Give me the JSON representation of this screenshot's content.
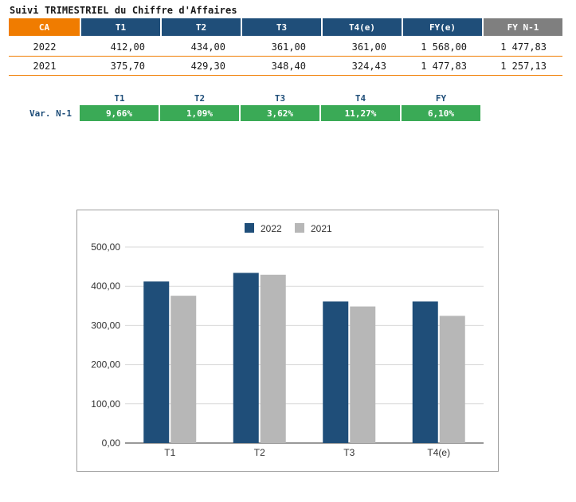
{
  "title": "Suivi TRIMESTRIEL du Chiffre d'Affaires",
  "table": {
    "headers": [
      "CA",
      "T1",
      "T2",
      "T3",
      "T4(e)",
      "FY(e)",
      "FY N-1"
    ],
    "rows": [
      {
        "year": "2022",
        "cells": [
          "412,00",
          "434,00",
          "361,00",
          "361,00",
          "1 568,00",
          "1 477,83"
        ]
      },
      {
        "year": "2021",
        "cells": [
          "375,70",
          "429,30",
          "348,40",
          "324,43",
          "1 477,83",
          "1 257,13"
        ]
      }
    ]
  },
  "variation": {
    "label": "Var. N-1",
    "headers": [
      "T1",
      "T2",
      "T3",
      "T4",
      "FY"
    ],
    "values": [
      "9,66%",
      "1,09%",
      "3,62%",
      "11,27%",
      "6,10%"
    ]
  },
  "colors": {
    "orange": "#f07c00",
    "blue": "#1f4e79",
    "gray": "#7f7f7f",
    "green": "#3aaa56",
    "bar2021": "#b7b7b7"
  },
  "chart_data": {
    "type": "bar",
    "title": "",
    "categories": [
      "T1",
      "T2",
      "T3",
      "T4(e)"
    ],
    "series": [
      {
        "name": "2022",
        "values": [
          412.0,
          434.0,
          361.0,
          361.0
        ],
        "color": "#1f4e79"
      },
      {
        "name": "2021",
        "values": [
          375.7,
          429.3,
          348.4,
          324.43
        ],
        "color": "#b7b7b7"
      }
    ],
    "ylim": [
      0,
      500
    ],
    "yticks": [
      "0,00",
      "100,00",
      "200,00",
      "300,00",
      "400,00",
      "500,00"
    ],
    "legend": "top-center",
    "grid": true,
    "xlabel": "",
    "ylabel": ""
  }
}
